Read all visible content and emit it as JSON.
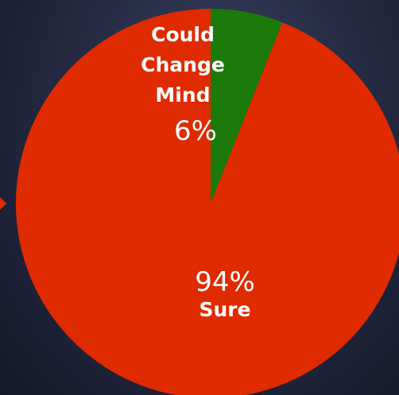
{
  "colors": {
    "sure": "#e02a00",
    "could_change_mind": "#1c7a0a",
    "arrow": "#e02a00",
    "label_text": "#ffffff"
  },
  "chart_data": {
    "type": "pie",
    "start_angle_deg": -90,
    "direction": "clockwise-from-top",
    "slices": [
      {
        "name": "Could Change Mind",
        "name_lines": [
          "Could",
          "Change",
          "Mind"
        ],
        "value": 6,
        "value_label": "6%",
        "color": "#1c7a0a"
      },
      {
        "name": "Sure",
        "name_lines": [
          "Sure"
        ],
        "value": 94,
        "value_label": "94%",
        "color": "#e02a00"
      }
    ]
  }
}
